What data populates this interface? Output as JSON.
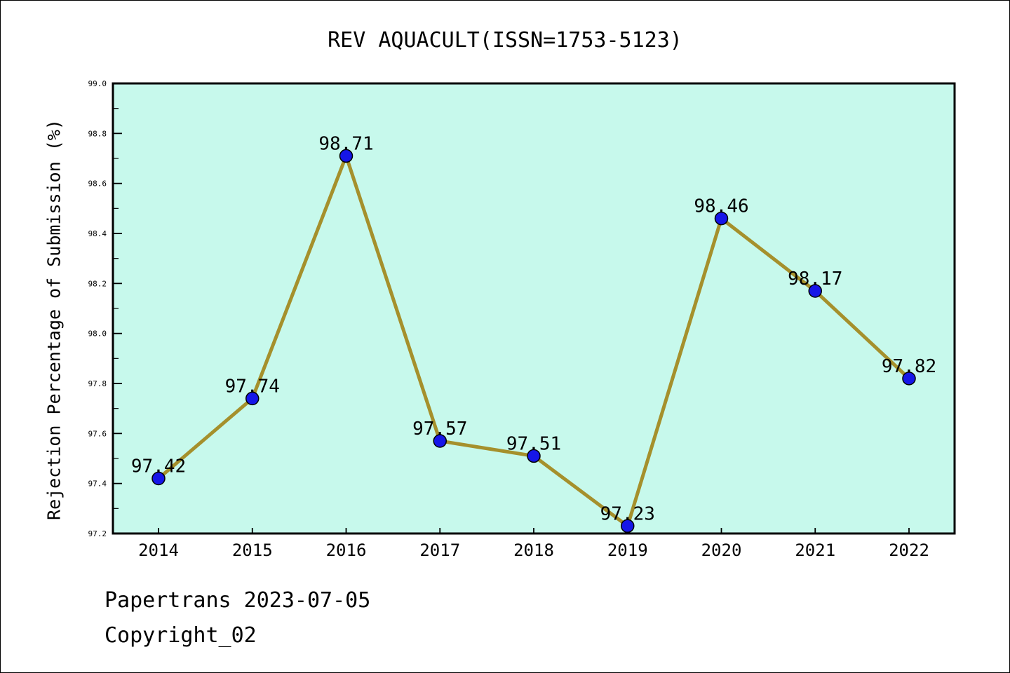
{
  "title": "REV AQUACULT(ISSN=1753-5123)",
  "footer": {
    "line1": "Papertrans 2023-07-05",
    "line2": "Copyright_02"
  },
  "chart_data": {
    "type": "line",
    "x": [
      2014,
      2015,
      2016,
      2017,
      2018,
      2019,
      2020,
      2021,
      2022
    ],
    "values": [
      97.42,
      97.74,
      98.71,
      97.57,
      97.51,
      97.23,
      98.46,
      98.17,
      97.82
    ],
    "point_labels": [
      "97.42",
      "97.74",
      "98.71",
      "97.57",
      "97.51",
      "97.23",
      "98.46",
      "98.17",
      "97.82"
    ],
    "title": "REV AQUACULT(ISSN=1753-5123)",
    "xlabel": "",
    "ylabel": "Rejection Percentage of Submission (%)",
    "ylim": [
      97.2,
      99.0
    ],
    "ytick_labels": [
      "97.2",
      "97.4",
      "97.6",
      "97.8",
      "98.0",
      "98.2",
      "98.4",
      "98.6",
      "98.8",
      "99.0"
    ],
    "ytick_step": 0.2,
    "yminor_step": 0.1,
    "grid": false,
    "legend_position": "none",
    "colors": {
      "line": "#a5902c",
      "marker_fill": "#1616e8",
      "marker_edge": "#000000",
      "plot_bg": "#c7f9ec",
      "figure_bg": "#ffffff",
      "text": "#000000"
    }
  }
}
